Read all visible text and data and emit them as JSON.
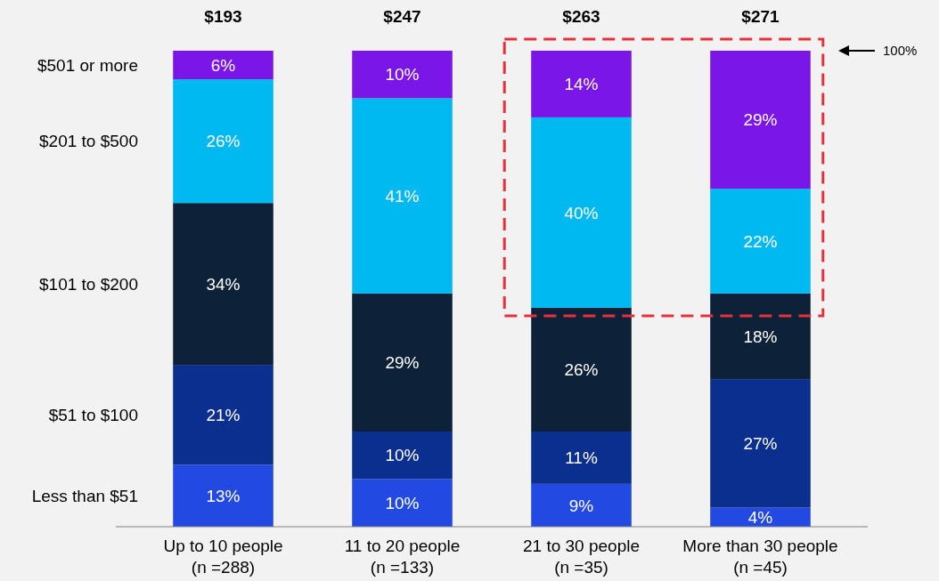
{
  "chart_data": {
    "type": "bar",
    "stacked": true,
    "categories": [
      "Up to 10 people\n(n =288)",
      "11 to 20 people\n(n =133)",
      "21 to 30 people\n(n =35)",
      "More than 30 people\n(n =45)"
    ],
    "series": [
      {
        "name": "Less than $51",
        "color": "#2249e2",
        "values": [
          13,
          10,
          9,
          4
        ],
        "value_labels": [
          "13%",
          "10%",
          "9%",
          "4%"
        ]
      },
      {
        "name": "$51 to $100",
        "color": "#0a2f8e",
        "values": [
          21,
          10,
          11,
          27
        ],
        "value_labels": [
          "21%",
          "10%",
          "11%",
          "27%"
        ]
      },
      {
        "name": "$101 to $200",
        "color": "#0d2238",
        "values": [
          34,
          29,
          26,
          18
        ],
        "value_labels": [
          "34%",
          "29%",
          "26%",
          "18%"
        ]
      },
      {
        "name": "$201 to $500",
        "color": "#00b9f1",
        "values": [
          26,
          41,
          40,
          22
        ],
        "value_labels": [
          "26%",
          "41%",
          "40%",
          "22%"
        ]
      },
      {
        "name": "$501 or more",
        "color": "#7a17e8",
        "values": [
          6,
          10,
          14,
          29
        ],
        "value_labels": [
          "6%",
          "10%",
          "14%",
          "29%"
        ]
      }
    ],
    "ylim": [
      0,
      100
    ],
    "legend": "left",
    "tick_labels": "x",
    "annotations": [
      "$193",
      "$247",
      "$263",
      "$271",
      "100%"
    ]
  }
}
